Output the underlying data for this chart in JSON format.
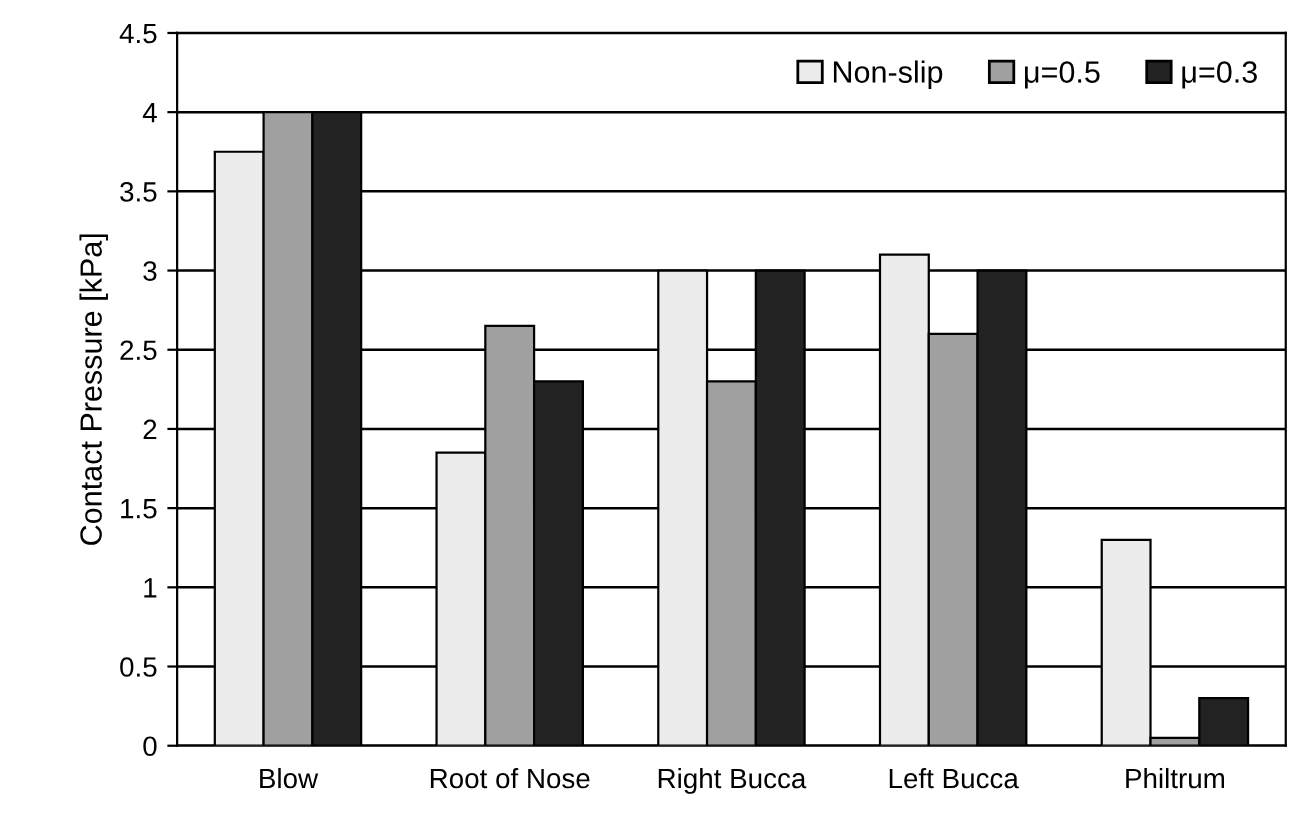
{
  "chart_data": {
    "type": "bar",
    "ylabel": "Contact Pressure [kPa]",
    "categories": [
      "Blow",
      "Root of Nose",
      "Right Bucca",
      "Left Bucca",
      "Philtrum"
    ],
    "series": [
      {
        "name": "Non-slip",
        "color": "#ececec",
        "values": [
          3.75,
          1.85,
          3.0,
          3.1,
          1.3
        ]
      },
      {
        "name": "μ=0.5",
        "color": "#a0a0a0",
        "values": [
          4.0,
          2.65,
          2.3,
          2.6,
          0.05
        ]
      },
      {
        "name": "μ=0.3",
        "color": "#222222",
        "values": [
          4.0,
          2.3,
          3.0,
          3.0,
          0.3
        ]
      }
    ],
    "ylim": [
      0,
      4.5
    ],
    "yticks": [
      0,
      0.5,
      1,
      1.5,
      2,
      2.5,
      3,
      3.5,
      4,
      4.5
    ],
    "grid": "y",
    "legend": "top right"
  }
}
